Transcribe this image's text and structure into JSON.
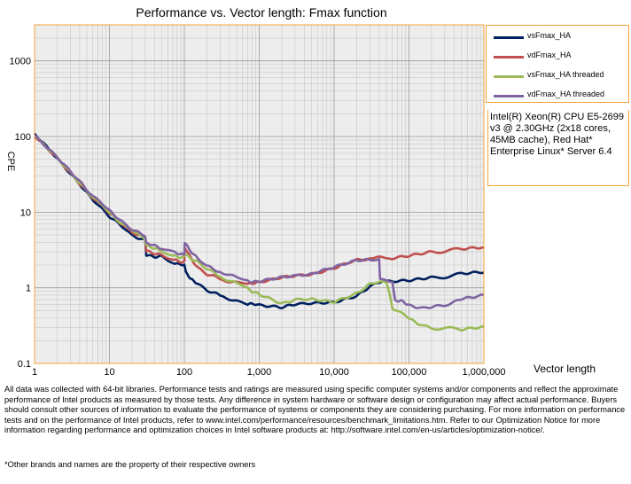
{
  "chart_data": {
    "type": "line",
    "title": "Performance vs. Vector length: Fmax function",
    "xlabel": "Vector length",
    "ylabel": "CPE",
    "xscale": "log",
    "yscale": "log",
    "xlim": [
      1,
      1000000
    ],
    "ylim": [
      0.1,
      3000
    ],
    "grid": true,
    "legend_position": "right",
    "x_ticks": [
      1,
      10,
      100,
      1000,
      10000,
      100000,
      1000000
    ],
    "x_tick_labels": [
      "1",
      "10",
      "100",
      "1,000",
      "10,000",
      "100,000",
      "1,000,000"
    ],
    "y_ticks": [
      0.1,
      1,
      10,
      100,
      1000
    ],
    "y_tick_labels": [
      "0.1",
      "1",
      "10",
      "100",
      "1000"
    ],
    "series": [
      {
        "name": "vsFmax_HA",
        "color": "#00205f",
        "x": [
          1,
          2,
          4,
          6,
          10,
          15,
          20,
          30,
          31,
          50,
          70,
          100,
          110,
          150,
          200,
          300,
          500,
          700,
          1000,
          2000,
          3000,
          5000,
          10000,
          20000,
          30000,
          40000,
          50000,
          100000,
          200000,
          500000,
          1000000
        ],
        "y": [
          110,
          52,
          24,
          15,
          9,
          6.5,
          5,
          4.2,
          2.7,
          2.6,
          2.2,
          2,
          1.5,
          1.1,
          0.9,
          0.78,
          0.68,
          0.62,
          0.58,
          0.55,
          0.62,
          0.64,
          0.66,
          0.8,
          1.05,
          1.2,
          1.22,
          1.25,
          1.35,
          1.5,
          1.58
        ]
      },
      {
        "name": "vdFmax_HA",
        "color": "#c0504d",
        "x": [
          1,
          2,
          4,
          6,
          10,
          15,
          20,
          30,
          31,
          50,
          70,
          100,
          101,
          150,
          200,
          300,
          500,
          700,
          1000,
          2000,
          3000,
          5000,
          10000,
          15000,
          20000,
          30000,
          50000,
          100000,
          200000,
          500000,
          1000000
        ],
        "y": [
          100,
          52,
          24,
          16,
          10,
          7,
          5.5,
          4.8,
          3,
          2.8,
          2.4,
          2.2,
          3.5,
          1.8,
          1.5,
          1.3,
          1.2,
          1.15,
          1.15,
          1.35,
          1.45,
          1.5,
          1.85,
          2.2,
          2.4,
          2.45,
          2.45,
          2.7,
          3,
          3.2,
          3.35
        ]
      },
      {
        "name": "vsFmax_HA threaded",
        "color": "#9bbb59",
        "x": [
          1,
          2,
          4,
          6,
          10,
          15,
          20,
          30,
          31,
          50,
          70,
          100,
          101,
          150,
          200,
          300,
          500,
          700,
          1000,
          2000,
          3000,
          5000,
          10000,
          20000,
          30000,
          40000,
          50000,
          60000,
          100000,
          150000,
          200000,
          500000,
          1000000
        ],
        "y": [
          100,
          52,
          24,
          16,
          10,
          7,
          6,
          4.5,
          3.5,
          3.2,
          2.6,
          2.6,
          2.8,
          2.2,
          1.8,
          1.4,
          1.15,
          1,
          0.8,
          0.6,
          0.68,
          0.7,
          0.65,
          0.85,
          1.15,
          1.25,
          1.2,
          0.55,
          0.4,
          0.32,
          0.3,
          0.28,
          0.3
        ]
      },
      {
        "name": "vdFmax_HA threaded",
        "color": "#8064a2",
        "x": [
          1,
          2,
          4,
          6,
          10,
          15,
          20,
          30,
          31,
          50,
          70,
          100,
          101,
          150,
          200,
          300,
          500,
          700,
          1000,
          2000,
          3000,
          5000,
          10000,
          20000,
          30000,
          40000,
          41000,
          60000,
          65000,
          100000,
          150000,
          300000,
          500000,
          1000000
        ],
        "y": [
          100,
          52,
          25,
          16,
          10.5,
          7.5,
          6,
          5,
          3.8,
          3.4,
          2.9,
          2.8,
          3.8,
          2.5,
          2,
          1.6,
          1.35,
          1.25,
          1.2,
          1.35,
          1.4,
          1.5,
          1.85,
          2.3,
          2.4,
          2.4,
          1.3,
          1.2,
          0.7,
          0.6,
          0.55,
          0.6,
          0.72,
          0.8
        ]
      }
    ]
  },
  "annotation": "Intel(R) Xeon(R) CPU E5-2699 v3 @ 2.30GHz (2x18 cores, 45MB cache), Red Hat* Enterprise Linux* Server 6.4",
  "disclaimer": "All data was collected with 64-bit libraries. Performance tests and ratings are measured using specific computer systems and/or components and reflect the approximate performance of Intel products as measured by those tests. Any difference in system hardware or software design or configuration may affect actual performance. Buyers should consult other sources of information to evaluate the performance of systems or components they are considering purchasing. For more information on performance tests and on the performance of Intel products, refer to www.intel.com/performance/resources/benchmark_limitations.htm. Refer to our Optimization Notice for more information regarding performance and optimization choices in Intel software products at: http://software.intel.com/en-us/articles/optimization-notice/.",
  "footnote": "*Other brands and names are the property of their respective owners"
}
